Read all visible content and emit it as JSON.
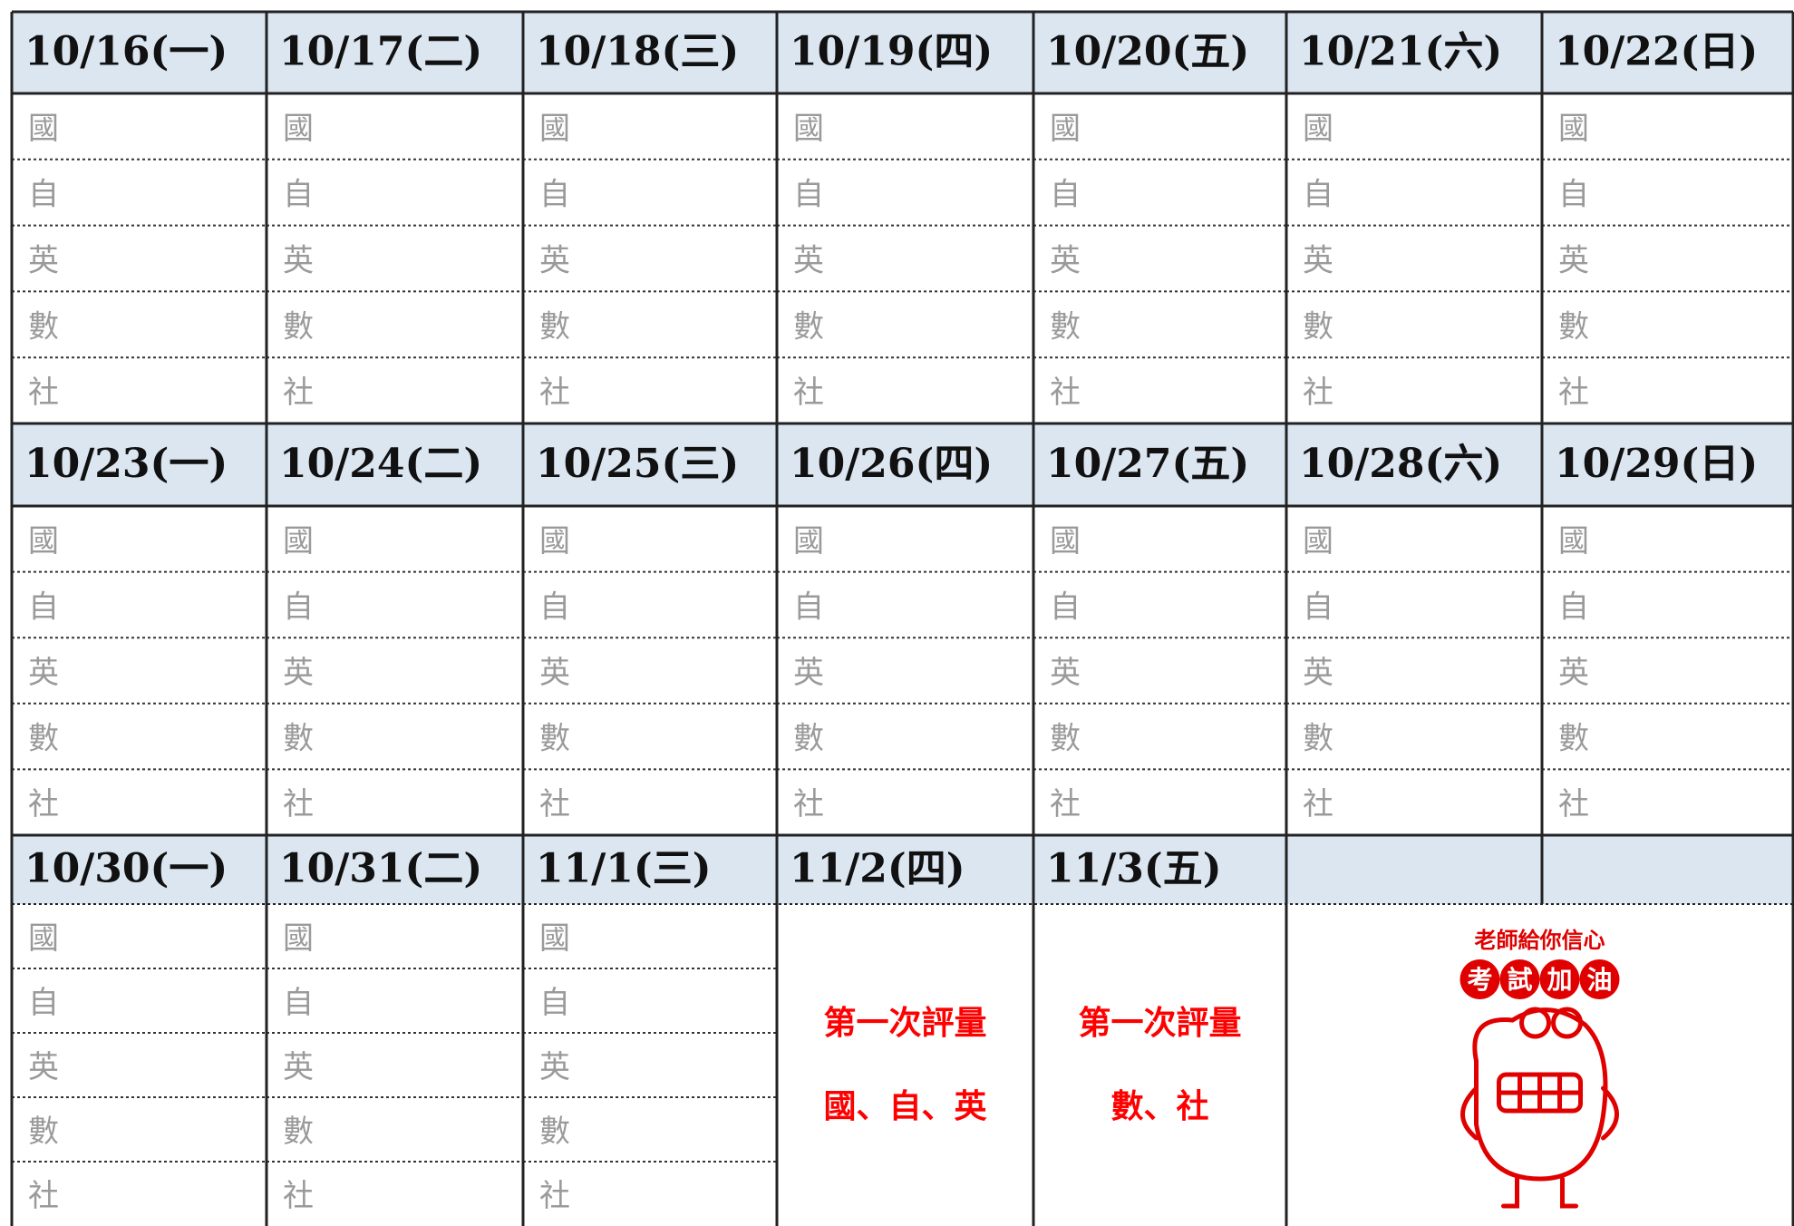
{
  "weeks": [
    {
      "days": [
        "10/16(一)",
        "10/17(二)",
        "10/18(三)",
        "10/19(四)",
        "10/20(五)",
        "10/21(六)",
        "10/22(日)"
      ]
    },
    {
      "days": [
        "10/23(一)",
        "10/24(二)",
        "10/25(三)",
        "10/26(四)",
        "10/27(五)",
        "10/28(六)",
        "10/29(日)"
      ]
    },
    {
      "days": [
        "10/30(一)",
        "10/31(二)",
        "11/1(三)",
        "11/2(四)",
        "11/3(五)"
      ]
    }
  ],
  "subjects": [
    "國",
    "自",
    "英",
    "數",
    "社"
  ],
  "exam": [
    {
      "title": "第一次評量",
      "subjects": "國、自、英"
    },
    {
      "title": "第一次評量",
      "subjects": "數、社"
    }
  ],
  "stamp": {
    "top": "老師給你信心",
    "main": [
      "考",
      "試",
      "加",
      "油"
    ]
  }
}
